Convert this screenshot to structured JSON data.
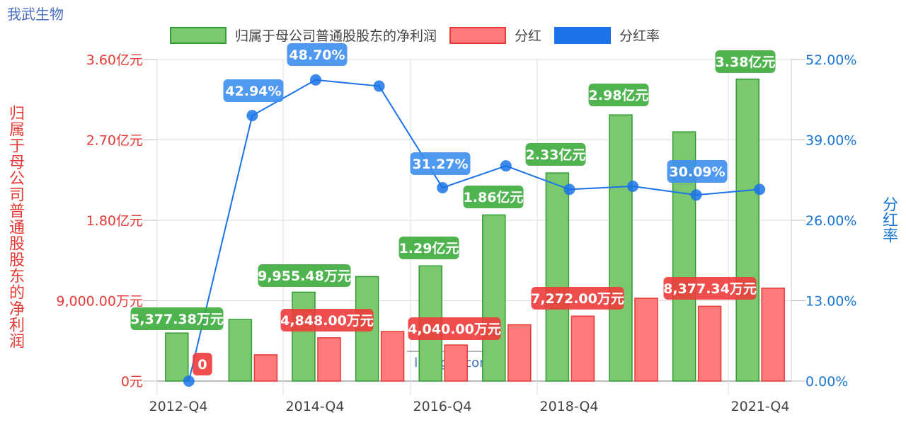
{
  "header": {
    "company": "我武生物"
  },
  "legend": [
    {
      "label": "归属于母公司普通股股东的净利润",
      "fill": "#7bc86f",
      "stroke": "#2e9e32"
    },
    {
      "label": "分红",
      "fill": "#ff7b7b",
      "stroke": "#e53935"
    },
    {
      "label": "分红率",
      "fill": "#1a73e8",
      "stroke": "#1a73e8"
    }
  ],
  "axes": {
    "left_title": "归属于母公司普通股股东的净利润",
    "right_title": "分红率",
    "left_ticks": [
      "0元",
      "9,000.00万元",
      "1.80亿元",
      "2.70亿元",
      "3.60亿元"
    ],
    "right_ticks": [
      "0.00%",
      "13.00%",
      "26.00%",
      "39.00%",
      "52.00%"
    ],
    "x_ticks": [
      "2012-Q4",
      "2014-Q4",
      "2016-Q4",
      "2018-Q4",
      "2021-Q4"
    ]
  },
  "watermark": "lixinger.com",
  "chart_data": {
    "type": "bar",
    "title": "我武生物",
    "categories": [
      "2012-Q4",
      "2013-Q4",
      "2014-Q4",
      "2015-Q4",
      "2016-Q4",
      "2017-Q4",
      "2018-Q4",
      "2019-Q4",
      "2020-Q4",
      "2021-Q4"
    ],
    "x_tick_labels_shown": [
      "2012-Q4",
      "2014-Q4",
      "2016-Q4",
      "2018-Q4",
      "2021-Q4"
    ],
    "series": [
      {
        "name": "归属于母公司普通股股东的净利润",
        "type": "bar",
        "axis": "left",
        "unit": "万元",
        "values": [
          5377.38,
          6900,
          9955.48,
          11700,
          12900,
          18600,
          23300,
          29800,
          27900,
          33800
        ],
        "labels": {
          "0": "5,377.38万元",
          "2": "9,955.48万元",
          "4": "1.29亿元",
          "5": "1.86亿元",
          "6": "2.33亿元",
          "7": "2.98亿元",
          "9": "3.38亿元"
        }
      },
      {
        "name": "分红",
        "type": "bar",
        "axis": "left",
        "unit": "万元",
        "values": [
          0,
          2940,
          4848.0,
          5550,
          4040.0,
          6300,
          7272.0,
          9270,
          8377.34,
          10400
        ],
        "labels": {
          "0": "0",
          "2": "4,848.00万元",
          "4": "4,040.00万元",
          "6": "7,272.00万元",
          "8": "8,377.34万元"
        }
      },
      {
        "name": "分红率",
        "type": "line",
        "axis": "right",
        "unit": "%",
        "values": [
          0,
          42.94,
          48.7,
          47.7,
          31.27,
          34.8,
          31.0,
          31.5,
          30.09,
          31.0
        ],
        "labels": {
          "1": "42.94%",
          "2": "48.70%",
          "4": "31.27%",
          "8": "30.09%"
        }
      }
    ],
    "ylabel_left": "归属于母公司普通股股东的净利润",
    "ylabel_right": "分红率",
    "ylim_left": [
      0,
      36000
    ],
    "ylim_right": [
      0,
      52
    ],
    "grid": true,
    "legend_position": "top"
  }
}
